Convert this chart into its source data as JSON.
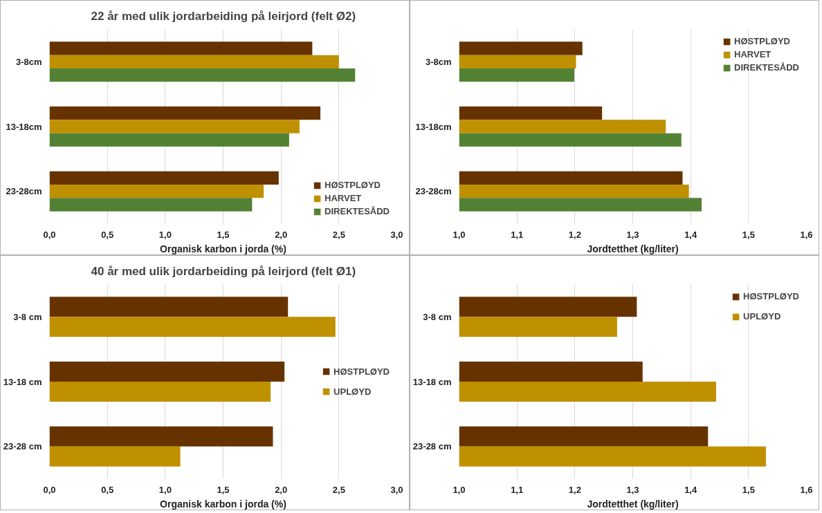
{
  "chart_data": [
    {
      "type": "bar",
      "orientation": "horizontal",
      "title": "22 år med ulik jordarbeiding på leirjord (felt Ø2)",
      "xlabel": "Organisk karbon i jorda (%)",
      "categories": [
        "3-8cm",
        "13-18cm",
        "23-28cm"
      ],
      "series": [
        {
          "name": "HØSTPLØYD",
          "color": "#663300",
          "values": [
            2.27,
            2.34,
            1.98
          ]
        },
        {
          "name": "HARVET",
          "color": "#bf9000",
          "values": [
            2.5,
            2.16,
            1.85
          ]
        },
        {
          "name": "DIREKTESÅDD",
          "color": "#548235",
          "values": [
            2.64,
            2.07,
            1.75
          ]
        }
      ],
      "xlim": [
        0,
        3
      ],
      "xticks": [
        {
          "value": 0,
          "label": "0,0"
        },
        {
          "value": 0.5,
          "label": "0,5"
        },
        {
          "value": 1,
          "label": "1,0"
        },
        {
          "value": 1.5,
          "label": "1,5"
        },
        {
          "value": 2,
          "label": "2,0"
        },
        {
          "value": 2.5,
          "label": "2,5"
        },
        {
          "value": 3,
          "label": "3,0"
        }
      ],
      "grid": "x",
      "legend": "bottom right"
    },
    {
      "type": "bar",
      "orientation": "horizontal",
      "xlabel": "Jordtetthet (kg/liter)",
      "categories": [
        "3-8cm",
        "13-18cm",
        "23-28cm"
      ],
      "series": [
        {
          "name": "HØSTPLØYD",
          "color": "#663300",
          "values": [
            1.213,
            1.247,
            1.386
          ]
        },
        {
          "name": "HARVET",
          "color": "#bf9000",
          "values": [
            1.202,
            1.357,
            1.397
          ]
        },
        {
          "name": "DIREKTESÅDD",
          "color": "#548235",
          "values": [
            1.199,
            1.384,
            1.419
          ]
        }
      ],
      "xlim": [
        1,
        1.6
      ],
      "xticks": [
        {
          "value": 1,
          "label": "1,0"
        },
        {
          "value": 1.1,
          "label": "1,1"
        },
        {
          "value": 1.2,
          "label": "1,2"
        },
        {
          "value": 1.3,
          "label": "1,3"
        },
        {
          "value": 1.4,
          "label": "1,4"
        },
        {
          "value": 1.5,
          "label": "1,5"
        },
        {
          "value": 1.6,
          "label": "1,6"
        }
      ],
      "grid": "x",
      "legend": "top right"
    },
    {
      "type": "bar",
      "orientation": "horizontal",
      "title": "40 år med ulik jordarbeiding på leirjord (felt Ø1)",
      "xlabel": "Organisk karbon i jorda (%)",
      "categories": [
        "3-8 cm",
        "13-18 cm",
        "23-28 cm"
      ],
      "series": [
        {
          "name": "HØSTPLØYD",
          "color": "#663300",
          "values": [
            2.06,
            2.03,
            1.93
          ]
        },
        {
          "name": "UPLØYD",
          "color": "#bf9000",
          "values": [
            2.47,
            1.91,
            1.13
          ]
        }
      ],
      "xlim": [
        0,
        3
      ],
      "xticks": [
        {
          "value": 0,
          "label": "0,0"
        },
        {
          "value": 0.5,
          "label": "0,5"
        },
        {
          "value": 1,
          "label": "1,0"
        },
        {
          "value": 1.5,
          "label": "1,5"
        },
        {
          "value": 2,
          "label": "2,0"
        },
        {
          "value": 2.5,
          "label": "2,5"
        },
        {
          "value": 3,
          "label": "3,0"
        }
      ],
      "grid": "x",
      "legend": "right"
    },
    {
      "type": "bar",
      "orientation": "horizontal",
      "xlabel": "Jordtetthet (kg/liter)",
      "categories": [
        "3-8 cm",
        "13-18 cm",
        "23-28 cm"
      ],
      "series": [
        {
          "name": "HØSTPLØYD",
          "color": "#663300",
          "values": [
            1.307,
            1.317,
            1.43
          ]
        },
        {
          "name": "UPLØYD",
          "color": "#bf9000",
          "values": [
            1.273,
            1.444,
            1.53
          ]
        }
      ],
      "xlim": [
        1,
        1.6
      ],
      "xticks": [
        {
          "value": 1,
          "label": "1,0"
        },
        {
          "value": 1.1,
          "label": "1,1"
        },
        {
          "value": 1.2,
          "label": "1,2"
        },
        {
          "value": 1.3,
          "label": "1,3"
        },
        {
          "value": 1.4,
          "label": "1,4"
        },
        {
          "value": 1.5,
          "label": "1,5"
        },
        {
          "value": 1.6,
          "label": "1,6"
        }
      ],
      "grid": "x",
      "legend": "top right"
    }
  ]
}
